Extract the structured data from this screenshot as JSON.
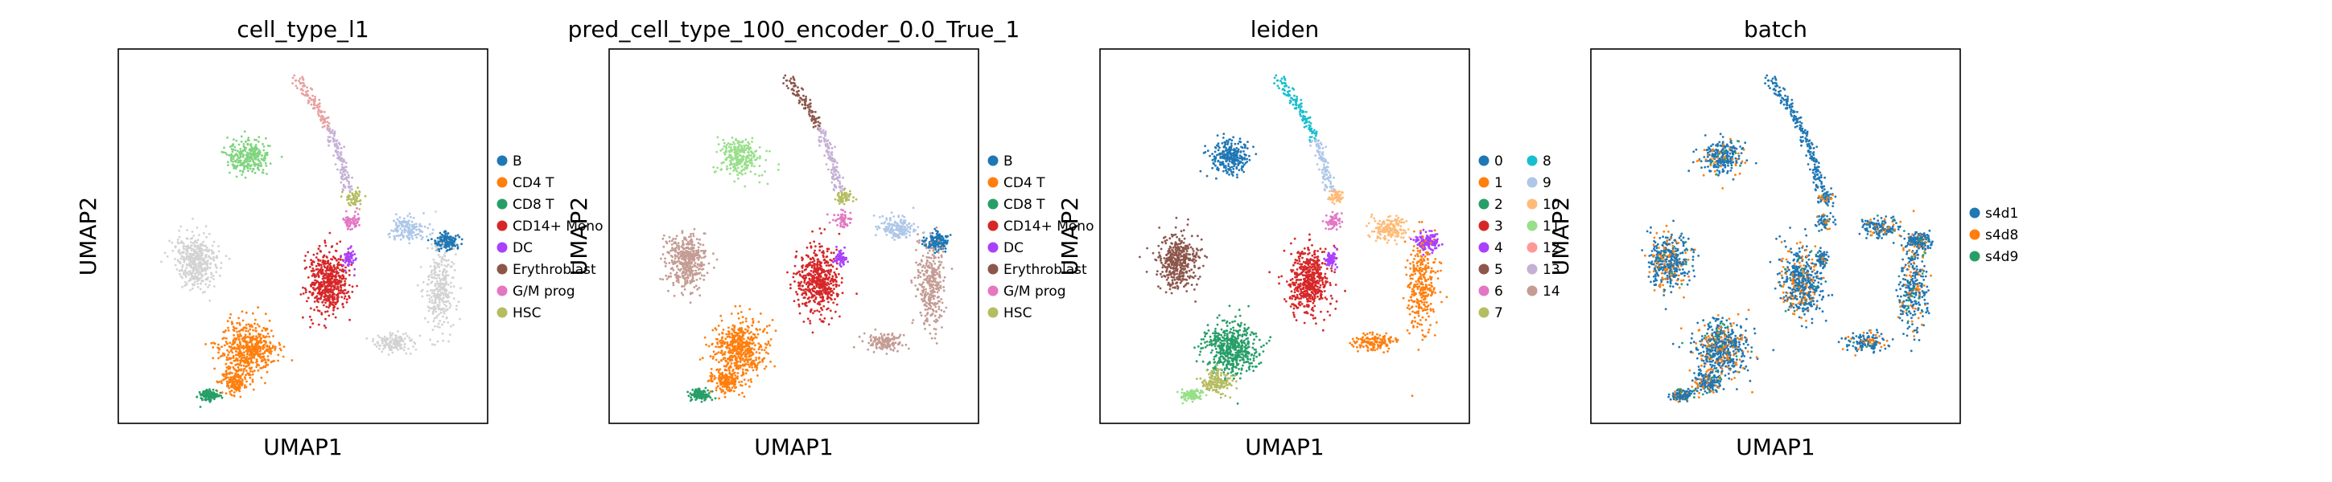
{
  "chart_data": [
    {
      "type": "scatter",
      "title": "cell_type_l1",
      "xlabel": "UMAP1",
      "ylabel": "UMAP2",
      "grid": false,
      "legend_placement": "right",
      "legend": [
        {
          "label": "B",
          "color": "#1f77b4"
        },
        {
          "label": "CD4 T",
          "color": "#ff7f0e"
        },
        {
          "label": "CD8 T",
          "color": "#279e68"
        },
        {
          "label": "CD14+ Mono",
          "color": "#d62728"
        },
        {
          "label": "DC",
          "color": "#aa40fc"
        },
        {
          "label": "Erythroblast",
          "color": "#8c564b"
        },
        {
          "label": "G/M prog",
          "color": "#e377c2"
        },
        {
          "label": "HSC",
          "color": "#b5bd61"
        }
      ]
    },
    {
      "type": "scatter",
      "title": "pred_cell_type_100_encoder_0.0_True_1",
      "xlabel": "UMAP1",
      "ylabel": "UMAP2",
      "grid": false,
      "legend_placement": "right",
      "legend": [
        {
          "label": "B",
          "color": "#1f77b4"
        },
        {
          "label": "CD4 T",
          "color": "#ff7f0e"
        },
        {
          "label": "CD8 T",
          "color": "#279e68"
        },
        {
          "label": "CD14+ Mono",
          "color": "#d62728"
        },
        {
          "label": "DC",
          "color": "#aa40fc"
        },
        {
          "label": "Erythroblast",
          "color": "#8c564b"
        },
        {
          "label": "G/M prog",
          "color": "#e377c2"
        },
        {
          "label": "HSC",
          "color": "#b5bd61"
        }
      ]
    },
    {
      "type": "scatter",
      "title": "leiden",
      "xlabel": "UMAP1",
      "ylabel": "UMAP2",
      "grid": false,
      "legend_placement": "right",
      "legend": [
        {
          "label": "0",
          "color": "#1f77b4"
        },
        {
          "label": "1",
          "color": "#ff7f0e"
        },
        {
          "label": "2",
          "color": "#279e68"
        },
        {
          "label": "3",
          "color": "#d62728"
        },
        {
          "label": "4",
          "color": "#aa40fc"
        },
        {
          "label": "5",
          "color": "#8c564b"
        },
        {
          "label": "6",
          "color": "#e377c2"
        },
        {
          "label": "7",
          "color": "#b5bd61"
        },
        {
          "label": "8",
          "color": "#17becf"
        },
        {
          "label": "9",
          "color": "#aec7e8"
        },
        {
          "label": "10",
          "color": "#ffbb78"
        },
        {
          "label": "11",
          "color": "#98df8a"
        },
        {
          "label": "12",
          "color": "#ff9896"
        },
        {
          "label": "13",
          "color": "#c5b0d5"
        },
        {
          "label": "14",
          "color": "#c49c94"
        }
      ]
    },
    {
      "type": "scatter",
      "title": "batch",
      "xlabel": "UMAP1",
      "ylabel": "UMAP2",
      "grid": false,
      "legend_placement": "right",
      "legend": [
        {
          "label": "s4d1",
          "color": "#1f77b4"
        },
        {
          "label": "s4d8",
          "color": "#ff7f0e"
        },
        {
          "label": "s4d9",
          "color": "#279e68"
        }
      ]
    }
  ]
}
